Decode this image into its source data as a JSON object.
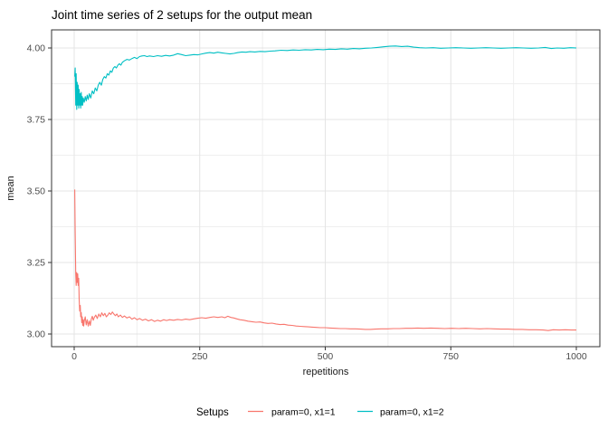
{
  "chart_data": {
    "type": "line",
    "title": "Joint time series of 2 setups for the output mean",
    "xlabel": "repetitions",
    "ylabel": "mean",
    "xlim": [
      0,
      1000
    ],
    "ylim": [
      3.0,
      4.0
    ],
    "grid": "on",
    "legend_position": "bottom",
    "legend_title": "Setups",
    "x_tick_values": [
      0,
      250,
      500,
      750,
      1000
    ],
    "x_tick_labels": [
      "0",
      "250",
      "500",
      "750",
      "1000"
    ],
    "x_minor_values": [
      125,
      375,
      625,
      875
    ],
    "y_tick_values": [
      3.0,
      3.25,
      3.5,
      3.75,
      4.0
    ],
    "y_tick_labels": [
      "3.00",
      "3.25",
      "3.50",
      "3.75",
      "4.00"
    ],
    "y_minor_values": [
      3.125,
      3.375,
      3.625,
      3.875
    ],
    "style": {
      "panel_border_color": "#333333",
      "grid_major_color": "#e4e4e4",
      "grid_minor_color": "#efefef",
      "tick_color": "#333333",
      "tick_label_color": "#4d4d4d"
    },
    "series": [
      {
        "name": "param=0, x1=1",
        "color": "#F8766D",
        "points": [
          [
            1,
            3.505
          ],
          [
            2,
            3.355
          ],
          [
            3,
            3.21
          ],
          [
            4,
            3.17
          ],
          [
            5,
            3.215
          ],
          [
            6,
            3.18
          ],
          [
            7,
            3.21
          ],
          [
            8,
            3.17
          ],
          [
            9,
            3.195
          ],
          [
            10,
            3.12
          ],
          [
            11,
            3.08
          ],
          [
            12,
            3.1
          ],
          [
            13,
            3.06
          ],
          [
            14,
            3.075
          ],
          [
            15,
            3.04
          ],
          [
            16,
            3.06
          ],
          [
            17,
            3.03
          ],
          [
            18,
            3.05
          ],
          [
            19,
            3.028
          ],
          [
            20,
            3.045
          ],
          [
            22,
            3.06
          ],
          [
            24,
            3.032
          ],
          [
            26,
            3.05
          ],
          [
            28,
            3.028
          ],
          [
            30,
            3.046
          ],
          [
            32,
            3.03
          ],
          [
            34,
            3.052
          ],
          [
            36,
            3.062
          ],
          [
            38,
            3.048
          ],
          [
            40,
            3.058
          ],
          [
            43,
            3.066
          ],
          [
            46,
            3.054
          ],
          [
            49,
            3.07
          ],
          [
            52,
            3.06
          ],
          [
            55,
            3.074
          ],
          [
            58,
            3.064
          ],
          [
            61,
            3.072
          ],
          [
            64,
            3.06
          ],
          [
            67,
            3.066
          ],
          [
            70,
            3.074
          ],
          [
            73,
            3.068
          ],
          [
            76,
            3.077
          ],
          [
            79,
            3.07
          ],
          [
            82,
            3.064
          ],
          [
            85,
            3.07
          ],
          [
            88,
            3.06
          ],
          [
            92,
            3.066
          ],
          [
            96,
            3.058
          ],
          [
            100,
            3.063
          ],
          [
            105,
            3.056
          ],
          [
            110,
            3.06
          ],
          [
            115,
            3.052
          ],
          [
            120,
            3.057
          ],
          [
            125,
            3.05
          ],
          [
            130,
            3.054
          ],
          [
            136,
            3.048
          ],
          [
            142,
            3.052
          ],
          [
            148,
            3.046
          ],
          [
            154,
            3.05
          ],
          [
            160,
            3.044
          ],
          [
            166,
            3.048
          ],
          [
            172,
            3.045
          ],
          [
            178,
            3.05
          ],
          [
            184,
            3.047
          ],
          [
            190,
            3.05
          ],
          [
            198,
            3.048
          ],
          [
            206,
            3.051
          ],
          [
            214,
            3.049
          ],
          [
            222,
            3.052
          ],
          [
            230,
            3.05
          ],
          [
            238,
            3.053
          ],
          [
            246,
            3.055
          ],
          [
            254,
            3.057
          ],
          [
            262,
            3.055
          ],
          [
            270,
            3.058
          ],
          [
            278,
            3.06
          ],
          [
            286,
            3.058
          ],
          [
            294,
            3.06
          ],
          [
            300,
            3.057
          ],
          [
            306,
            3.062
          ],
          [
            312,
            3.058
          ],
          [
            318,
            3.056
          ],
          [
            324,
            3.053
          ],
          [
            330,
            3.05
          ],
          [
            338,
            3.048
          ],
          [
            346,
            3.045
          ],
          [
            354,
            3.043
          ],
          [
            362,
            3.041
          ],
          [
            370,
            3.042
          ],
          [
            378,
            3.039
          ],
          [
            386,
            3.037
          ],
          [
            394,
            3.038
          ],
          [
            402,
            3.035
          ],
          [
            410,
            3.033
          ],
          [
            418,
            3.034
          ],
          [
            426,
            3.031
          ],
          [
            434,
            3.03
          ],
          [
            442,
            3.028
          ],
          [
            450,
            3.027
          ],
          [
            458,
            3.026
          ],
          [
            466,
            3.025
          ],
          [
            474,
            3.024
          ],
          [
            482,
            3.023
          ],
          [
            490,
            3.022
          ],
          [
            500,
            3.022
          ],
          [
            510,
            3.021
          ],
          [
            520,
            3.02
          ],
          [
            530,
            3.019
          ],
          [
            540,
            3.019
          ],
          [
            550,
            3.018
          ],
          [
            560,
            3.018
          ],
          [
            570,
            3.017
          ],
          [
            580,
            3.016
          ],
          [
            590,
            3.016
          ],
          [
            600,
            3.017
          ],
          [
            612,
            3.018
          ],
          [
            624,
            3.018
          ],
          [
            636,
            3.019
          ],
          [
            648,
            3.019
          ],
          [
            660,
            3.02
          ],
          [
            672,
            3.02
          ],
          [
            684,
            3.021
          ],
          [
            696,
            3.02
          ],
          [
            710,
            3.021
          ],
          [
            724,
            3.02
          ],
          [
            738,
            3.019
          ],
          [
            752,
            3.02
          ],
          [
            766,
            3.019
          ],
          [
            780,
            3.02
          ],
          [
            794,
            3.019
          ],
          [
            808,
            3.018
          ],
          [
            822,
            3.019
          ],
          [
            836,
            3.018
          ],
          [
            850,
            3.017
          ],
          [
            864,
            3.017
          ],
          [
            878,
            3.016
          ],
          [
            892,
            3.016
          ],
          [
            906,
            3.015
          ],
          [
            920,
            3.015
          ],
          [
            934,
            3.014
          ],
          [
            944,
            3.012
          ],
          [
            954,
            3.015
          ],
          [
            966,
            3.014
          ],
          [
            978,
            3.015
          ],
          [
            990,
            3.014
          ],
          [
            1000,
            3.014
          ]
        ]
      },
      {
        "name": "param=0, x1=2",
        "color": "#00BFC4",
        "points": [
          [
            1,
            3.9
          ],
          [
            2,
            3.93
          ],
          [
            3,
            3.8
          ],
          [
            4,
            3.91
          ],
          [
            5,
            3.785
          ],
          [
            6,
            3.88
          ],
          [
            7,
            3.8
          ],
          [
            8,
            3.87
          ],
          [
            9,
            3.79
          ],
          [
            10,
            3.855
          ],
          [
            11,
            3.8
          ],
          [
            12,
            3.84
          ],
          [
            13,
            3.79
          ],
          [
            14,
            3.845
          ],
          [
            15,
            3.8
          ],
          [
            16,
            3.83
          ],
          [
            17,
            3.8
          ],
          [
            18,
            3.825
          ],
          [
            20,
            3.81
          ],
          [
            22,
            3.83
          ],
          [
            24,
            3.815
          ],
          [
            26,
            3.835
          ],
          [
            28,
            3.82
          ],
          [
            30,
            3.84
          ],
          [
            33,
            3.825
          ],
          [
            36,
            3.85
          ],
          [
            39,
            3.84
          ],
          [
            42,
            3.86
          ],
          [
            45,
            3.85
          ],
          [
            48,
            3.87
          ],
          [
            51,
            3.88
          ],
          [
            54,
            3.87
          ],
          [
            57,
            3.89
          ],
          [
            60,
            3.9
          ],
          [
            63,
            3.895
          ],
          [
            66,
            3.91
          ],
          [
            69,
            3.905
          ],
          [
            72,
            3.92
          ],
          [
            75,
            3.915
          ],
          [
            78,
            3.93
          ],
          [
            81,
            3.935
          ],
          [
            84,
            3.93
          ],
          [
            87,
            3.94
          ],
          [
            90,
            3.945
          ],
          [
            93,
            3.94
          ],
          [
            96,
            3.95
          ],
          [
            100,
            3.955
          ],
          [
            105,
            3.96
          ],
          [
            110,
            3.958
          ],
          [
            115,
            3.963
          ],
          [
            120,
            3.967
          ],
          [
            125,
            3.963
          ],
          [
            130,
            3.97
          ],
          [
            135,
            3.972
          ],
          [
            140,
            3.973
          ],
          [
            145,
            3.97
          ],
          [
            150,
            3.972
          ],
          [
            158,
            3.97
          ],
          [
            166,
            3.973
          ],
          [
            174,
            3.971
          ],
          [
            182,
            3.974
          ],
          [
            190,
            3.972
          ],
          [
            198,
            3.975
          ],
          [
            206,
            3.98
          ],
          [
            214,
            3.977
          ],
          [
            222,
            3.973
          ],
          [
            230,
            3.975
          ],
          [
            238,
            3.977
          ],
          [
            246,
            3.976
          ],
          [
            254,
            3.979
          ],
          [
            262,
            3.982
          ],
          [
            270,
            3.984
          ],
          [
            278,
            3.982
          ],
          [
            286,
            3.985
          ],
          [
            294,
            3.983
          ],
          [
            302,
            3.981
          ],
          [
            310,
            3.979
          ],
          [
            318,
            3.981
          ],
          [
            326,
            3.984
          ],
          [
            334,
            3.986
          ],
          [
            342,
            3.985
          ],
          [
            350,
            3.987
          ],
          [
            360,
            3.986
          ],
          [
            370,
            3.988
          ],
          [
            380,
            3.987
          ],
          [
            390,
            3.989
          ],
          [
            400,
            3.99
          ],
          [
            412,
            3.992
          ],
          [
            424,
            3.991
          ],
          [
            436,
            3.993
          ],
          [
            448,
            3.992
          ],
          [
            460,
            3.994
          ],
          [
            472,
            3.993
          ],
          [
            484,
            3.995
          ],
          [
            496,
            3.994
          ],
          [
            508,
            3.996
          ],
          [
            520,
            3.995
          ],
          [
            532,
            3.997
          ],
          [
            544,
            3.996
          ],
          [
            556,
            3.998
          ],
          [
            568,
            3.997
          ],
          [
            580,
            3.999
          ],
          [
            592,
            4.0
          ],
          [
            604,
            4.002
          ],
          [
            616,
            4.004
          ],
          [
            628,
            4.006
          ],
          [
            640,
            4.007
          ],
          [
            652,
            4.005
          ],
          [
            664,
            4.006
          ],
          [
            676,
            4.003
          ],
          [
            688,
            4.001
          ],
          [
            700,
            4.0
          ],
          [
            715,
            4.001
          ],
          [
            730,
            3.999
          ],
          [
            745,
            4.0
          ],
          [
            760,
            4.001
          ],
          [
            775,
            4.0
          ],
          [
            790,
            3.999
          ],
          [
            805,
            4.0
          ],
          [
            820,
            4.001
          ],
          [
            835,
            4.0
          ],
          [
            850,
            3.999
          ],
          [
            865,
            4.0
          ],
          [
            880,
            4.001
          ],
          [
            895,
            4.0
          ],
          [
            910,
            3.999
          ],
          [
            925,
            4.0
          ],
          [
            938,
            4.002
          ],
          [
            950,
            3.998
          ],
          [
            962,
            4.0
          ],
          [
            975,
            3.999
          ],
          [
            988,
            4.001
          ],
          [
            1000,
            4.0
          ]
        ]
      }
    ]
  }
}
